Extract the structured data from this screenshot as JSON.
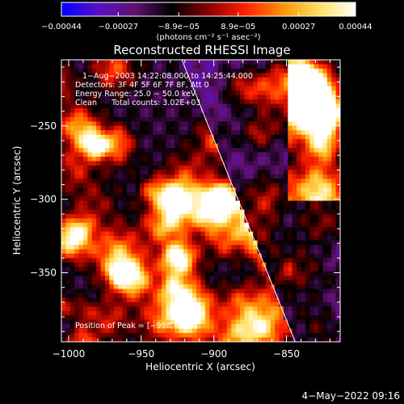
{
  "chart_data": {
    "type": "heatmap",
    "title": "Reconstructed RHESSI Image",
    "xlabel": "Heliocentric X (arcsec)",
    "ylabel": "Heliocentric Y (arcsec)",
    "xlim": [
      -1005,
      -813
    ],
    "ylim": [
      -397,
      -205
    ],
    "x_ticks": [
      -1000,
      -950,
      -900,
      -850
    ],
    "x_tick_labels": [
      "−1000",
      "−950",
      "−900",
      "−850"
    ],
    "y_ticks": [
      -250,
      -300,
      -350
    ],
    "y_tick_labels": [
      "−250",
      "−300",
      "−350"
    ],
    "colorbar": {
      "range": [
        -0.00044,
        0.00044
      ],
      "ticks": [
        -0.00044,
        -0.00027,
        -8.9e-05,
        8.9e-05,
        0.00027,
        0.00044
      ],
      "tick_labels": [
        "−0.00044",
        "−0.00027",
        "−8.9e−05",
        "8.9e−05",
        "0.00027",
        "0.00044"
      ],
      "unit_label": "(photons cm⁻² s⁻¹ asec⁻²)",
      "stops": [
        "#0000ff",
        "#5a10c8",
        "#601070",
        "#000000",
        "#8a0000",
        "#ff2000",
        "#ff9000",
        "#ffe060",
        "#ffffff"
      ]
    },
    "annotations": [
      "1−Aug−2003 14:22:08.000 to 14:25:44.000",
      "Detectors: 3F 4F 5F 6F 7F 8F, Att 0",
      "Energy Range: 25.0 − 50.0 keV",
      "Clean      Total counts: 3.02E+03"
    ],
    "peak_label": "Position of Peak = [−998,−327]",
    "peak_position": [
      -998,
      -327
    ],
    "limb_line": [
      [
        -922,
        -205
      ],
      [
        -844,
        -397
      ]
    ],
    "grid": false
  },
  "footer": {
    "timestamp": "4−May−2022 09:16"
  }
}
